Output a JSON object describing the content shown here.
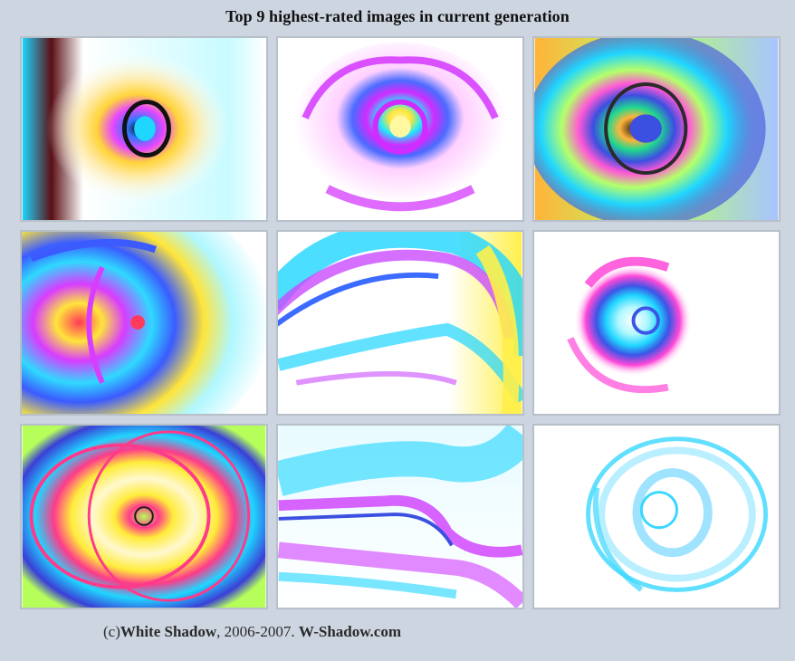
{
  "title": "Top 9 highest-rated images in current generation",
  "images": [
    {
      "name": "gen-image-1",
      "colors": [
        "#5a0f14",
        "#2e78ff",
        "#ffd43a",
        "#e846ff",
        "#1fd6ff"
      ]
    },
    {
      "name": "gen-image-2",
      "colors": [
        "#d12cff",
        "#20e8ff",
        "#ffe53a",
        "#4a6bff",
        "#ff4fd8"
      ]
    },
    {
      "name": "gen-image-3",
      "colors": [
        "#ffb43a",
        "#1fd98f",
        "#3b4fe0",
        "#ff58d6",
        "#b5ff6a"
      ]
    },
    {
      "name": "gen-image-4",
      "colors": [
        "#2fd9ff",
        "#d83cff",
        "#ffe53a",
        "#ff6a3a",
        "#3b5bff"
      ]
    },
    {
      "name": "gen-image-5",
      "colors": [
        "#1fd6ff",
        "#c94bff",
        "#fff04a",
        "#3b6bff",
        "#ffb7ef"
      ]
    },
    {
      "name": "gen-image-6",
      "colors": [
        "#ff48d8",
        "#1fd6ff",
        "#3b55e6",
        "#ffe3ff",
        "#b0f7ff"
      ]
    },
    {
      "name": "gen-image-7",
      "colors": [
        "#ffec3a",
        "#ff3a8a",
        "#1fd6ff",
        "#3a3fd6",
        "#b6ff5a"
      ]
    },
    {
      "name": "gen-image-8",
      "colors": [
        "#1fd6ff",
        "#d03cff",
        "#3b4fe0",
        "#ffc6f2",
        "#ffffff"
      ]
    },
    {
      "name": "gen-image-9",
      "colors": [
        "#39d7ff",
        "#9be8ff",
        "#d9f7ff",
        "#5fd0ff",
        "#ffffff"
      ]
    }
  ],
  "footer": {
    "prefix": "(c)",
    "author": "White Shadow",
    "years": ", 2006-2007. ",
    "site": "W-Shadow.com"
  }
}
